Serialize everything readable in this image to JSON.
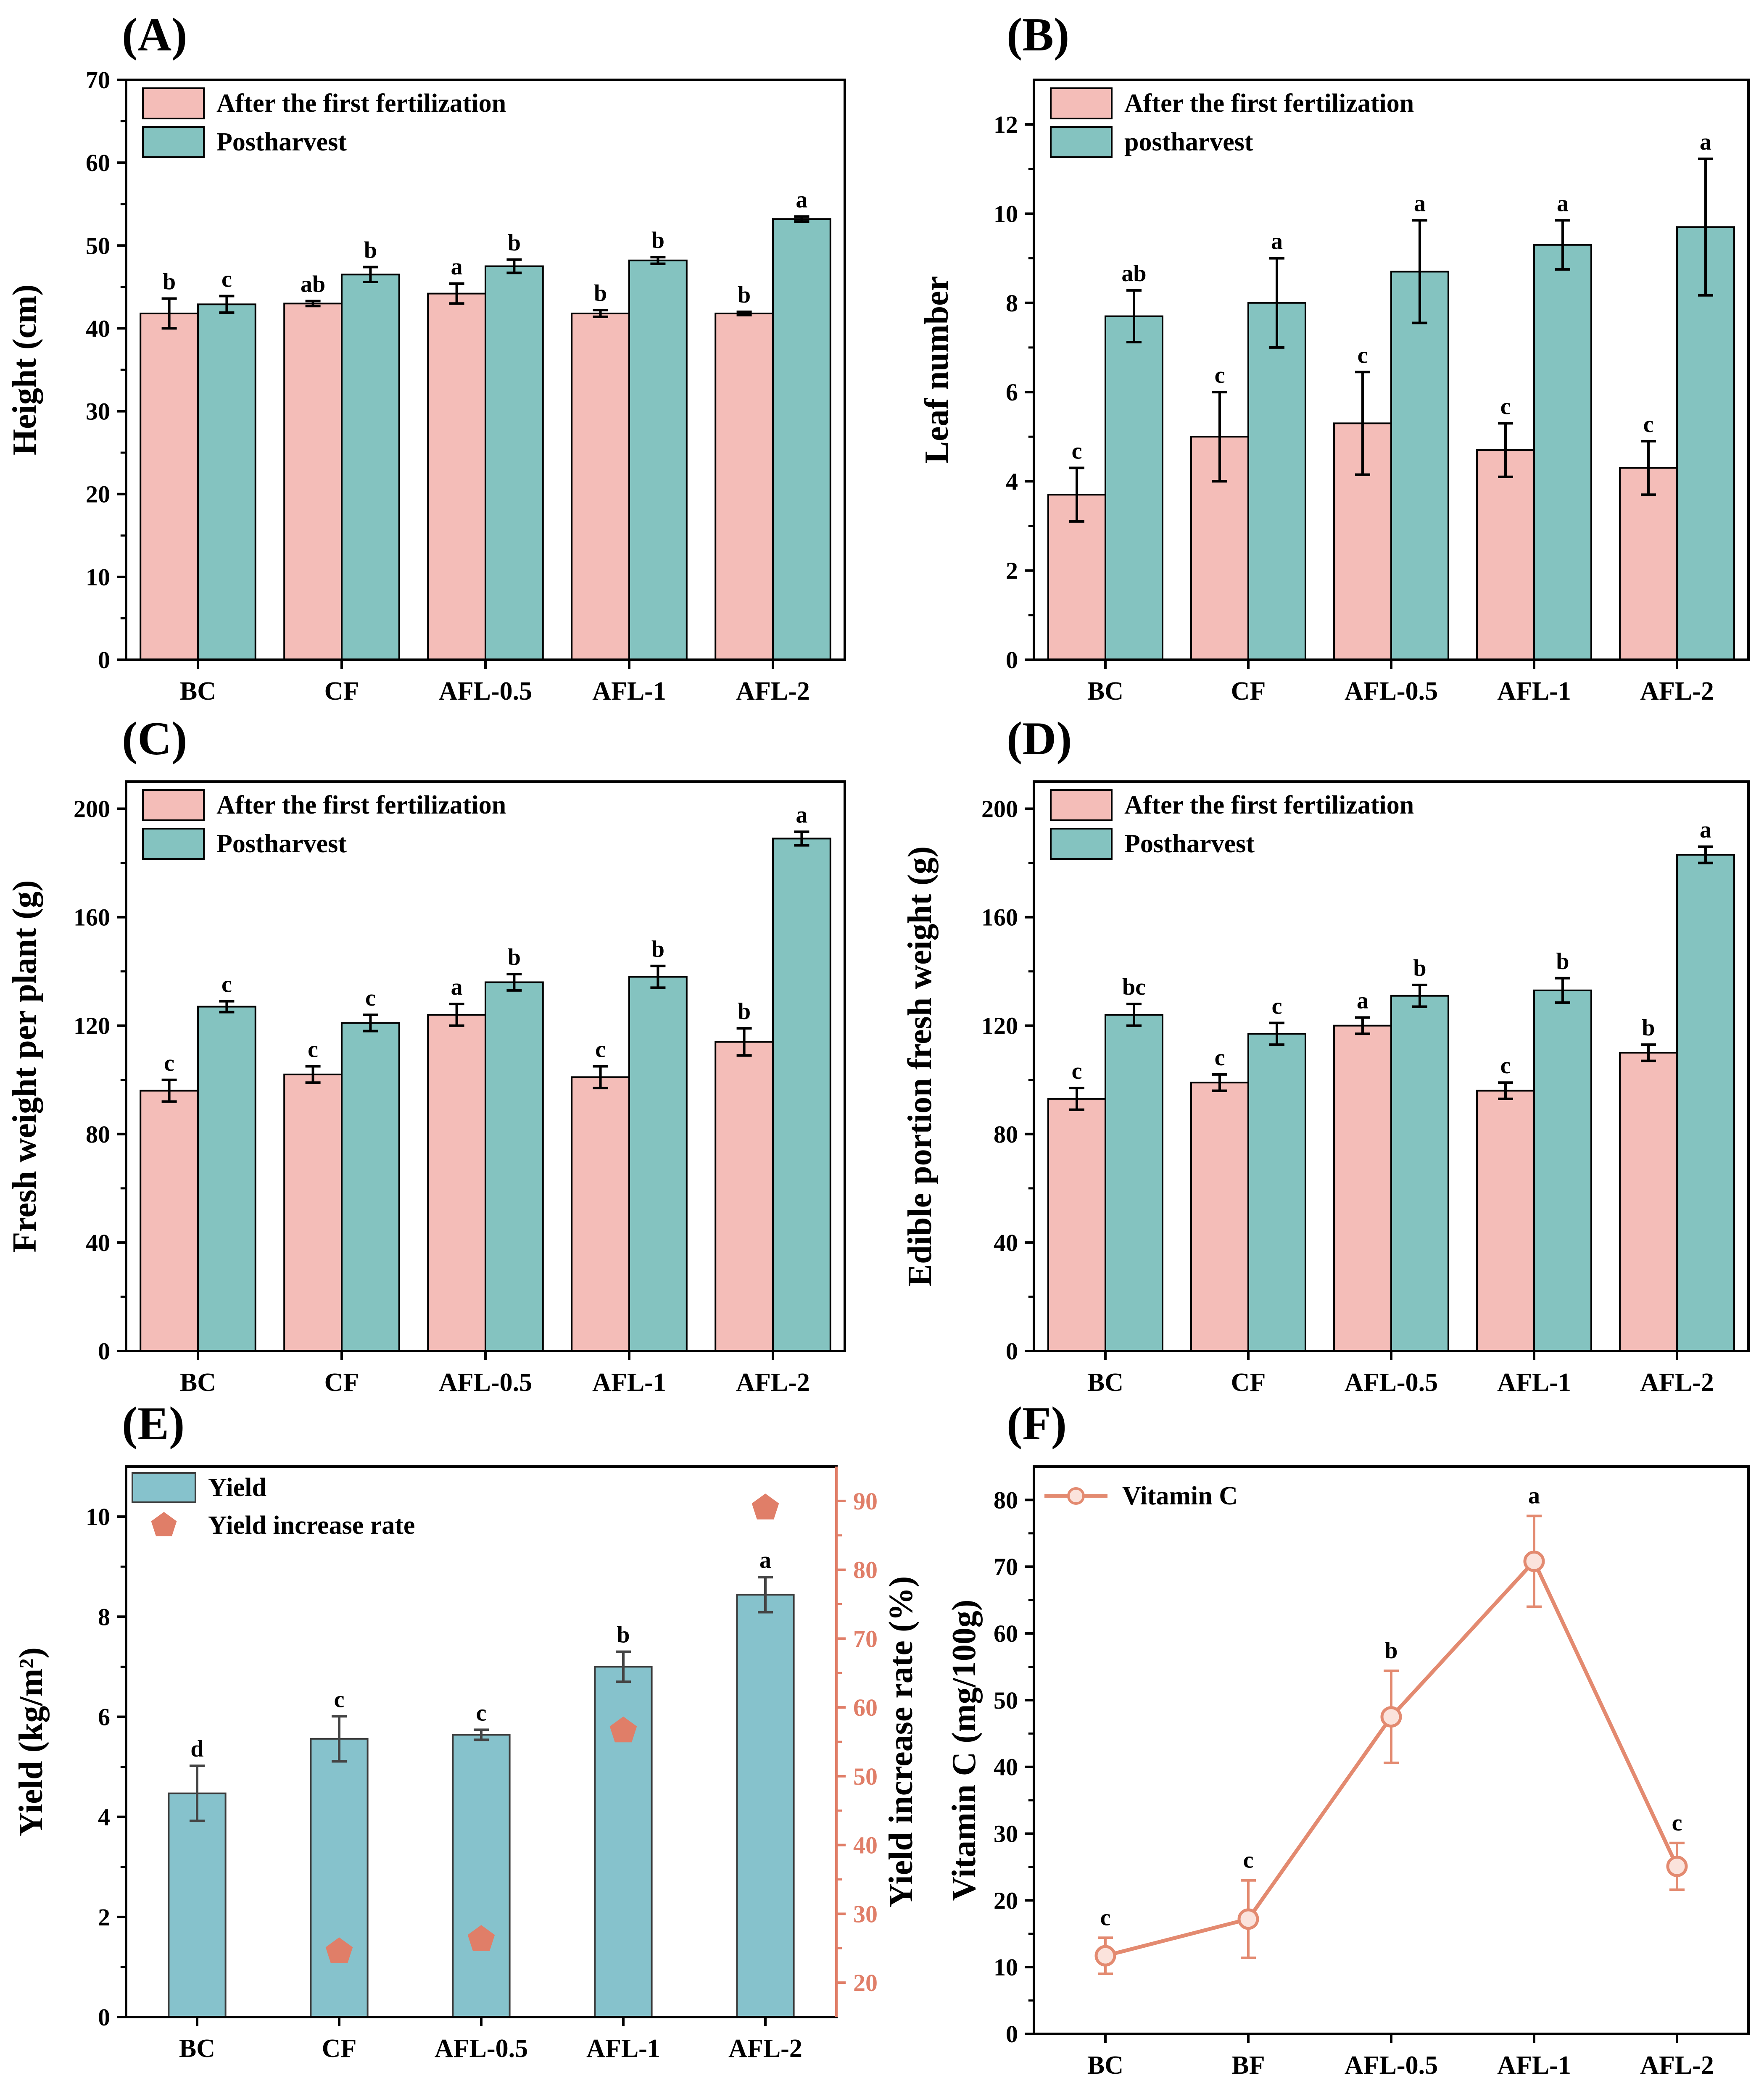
{
  "colors": {
    "first": "#F4BDB8",
    "post": "#84C3C0",
    "yield_bar": "#86C2CC",
    "rate_marker": "#E07E68",
    "vitc_line": "#E38A70",
    "axis": "#000000"
  },
  "chart_data": [
    {
      "id": "A",
      "panel_label": "(A)",
      "type": "bar",
      "ylabel": "Height (cm)",
      "ylim": [
        0,
        70
      ],
      "yticks": [
        "0",
        "10",
        "20",
        "30",
        "40",
        "50",
        "60",
        "70"
      ],
      "categories": [
        "BC",
        "CF",
        "AFL-0.5",
        "AFL-1",
        "AFL-2"
      ],
      "series": [
        {
          "name": "After the first fertilization",
          "values": [
            41.8,
            43.0,
            44.2,
            41.8,
            41.8
          ],
          "errors": [
            1.8,
            0.3,
            1.2,
            0.4,
            0.2
          ],
          "letters": [
            "b",
            "ab",
            "a",
            "b",
            "b"
          ]
        },
        {
          "name": "Postharvest",
          "values": [
            42.9,
            46.5,
            47.5,
            48.2,
            53.2
          ],
          "errors": [
            1.0,
            0.9,
            0.8,
            0.4,
            0.3
          ],
          "letters": [
            "c",
            "b",
            "b",
            "b",
            "a"
          ]
        }
      ]
    },
    {
      "id": "B",
      "panel_label": "(B)",
      "type": "bar",
      "ylabel": "Leaf number",
      "ylim": [
        0,
        13
      ],
      "yticks": [
        "0",
        "2",
        "4",
        "6",
        "8",
        "10",
        "12"
      ],
      "categories": [
        "BC",
        "CF",
        "AFL-0.5",
        "AFL-1",
        "AFL-2"
      ],
      "series": [
        {
          "name": "After the first fertilization",
          "values": [
            3.7,
            5.0,
            5.3,
            4.7,
            4.3
          ],
          "errors": [
            0.6,
            1.0,
            1.15,
            0.6,
            0.6
          ],
          "letters": [
            "c",
            "c",
            "c",
            "c",
            "c"
          ]
        },
        {
          "name": "postharvest",
          "values": [
            7.7,
            8.0,
            8.7,
            9.3,
            9.7
          ],
          "errors": [
            0.58,
            1.0,
            1.15,
            0.55,
            1.53
          ],
          "letters": [
            "ab",
            "a",
            "a",
            "a",
            "a"
          ]
        }
      ]
    },
    {
      "id": "C",
      "panel_label": "(C)",
      "type": "bar",
      "ylabel": "Fresh weight per plant (g)",
      "ylim": [
        0,
        210
      ],
      "yticks": [
        "0",
        "40",
        "80",
        "120",
        "160",
        "200"
      ],
      "categories": [
        "BC",
        "CF",
        "AFL-0.5",
        "AFL-1",
        "AFL-2"
      ],
      "series": [
        {
          "name": "After the first fertilization",
          "values": [
            96,
            102,
            124,
            101,
            114
          ],
          "errors": [
            4,
            3,
            4,
            4,
            5
          ],
          "letters": [
            "c",
            "c",
            "a",
            "c",
            "b"
          ]
        },
        {
          "name": "Postharvest",
          "values": [
            127,
            121,
            136,
            138,
            189
          ],
          "errors": [
            2,
            3,
            3,
            4,
            2.5
          ],
          "letters": [
            "c",
            "c",
            "b",
            "b",
            "a"
          ]
        }
      ]
    },
    {
      "id": "D",
      "panel_label": "(D)",
      "type": "bar",
      "ylabel": "Edible portion fresh weight (g)",
      "ylim": [
        0,
        210
      ],
      "yticks": [
        "0",
        "40",
        "80",
        "120",
        "160",
        "200"
      ],
      "categories": [
        "BC",
        "CF",
        "AFL-0.5",
        "AFL-1",
        "AFL-2"
      ],
      "series": [
        {
          "name": "After the first fertilization",
          "values": [
            93,
            99,
            120,
            96,
            110
          ],
          "errors": [
            4,
            3,
            3,
            3,
            3
          ],
          "letters": [
            "c",
            "c",
            "a",
            "c",
            "b"
          ]
        },
        {
          "name": "Postharvest",
          "values": [
            124,
            117,
            131,
            133,
            183
          ],
          "errors": [
            4,
            4,
            4,
            4.5,
            3
          ],
          "letters": [
            "bc",
            "c",
            "b",
            "b",
            "a"
          ]
        }
      ]
    },
    {
      "id": "E",
      "panel_label": "(E)",
      "type": "bar",
      "ylabel": "Yield (kg/m²)",
      "ylabel_right": "Yield increase  rate (%)",
      "ylim": [
        0,
        11
      ],
      "yticks": [
        "0",
        "2",
        "4",
        "6",
        "8",
        "10"
      ],
      "ylim_right": [
        15,
        95
      ],
      "yticks_right": [
        "20",
        "30",
        "40",
        "50",
        "60",
        "70",
        "80",
        "90"
      ],
      "categories": [
        "BC",
        "CF",
        "AFL-0.5",
        "AFL-1",
        "AFL-2"
      ],
      "series": [
        {
          "name": "Yield",
          "values": [
            4.47,
            5.56,
            5.64,
            7.0,
            8.44
          ],
          "errors": [
            0.55,
            0.45,
            0.1,
            0.3,
            0.35
          ],
          "letters": [
            "d",
            "c",
            "c",
            "b",
            "a"
          ]
        }
      ],
      "rate_series": {
        "name": "Yield increase rate",
        "values": [
          null,
          24.5,
          26.3,
          56.6,
          89.0
        ]
      }
    },
    {
      "id": "F",
      "panel_label": "(F)",
      "type": "line",
      "ylabel": "Vitamin C (mg/100g)",
      "ylim": [
        0,
        85
      ],
      "yticks": [
        "0",
        "10",
        "20",
        "30",
        "40",
        "50",
        "60",
        "70",
        "80"
      ],
      "categories": [
        "BC",
        "BF",
        "AFL-0.5",
        "AFL-1",
        "AFL-2"
      ],
      "series": [
        {
          "name": "Vitamin C",
          "values": [
            11.7,
            17.2,
            47.5,
            70.8,
            25.1
          ],
          "errors": [
            2.7,
            5.8,
            6.9,
            6.8,
            3.5
          ],
          "letters": [
            "c",
            "c",
            "b",
            "a",
            "c"
          ]
        }
      ]
    }
  ]
}
